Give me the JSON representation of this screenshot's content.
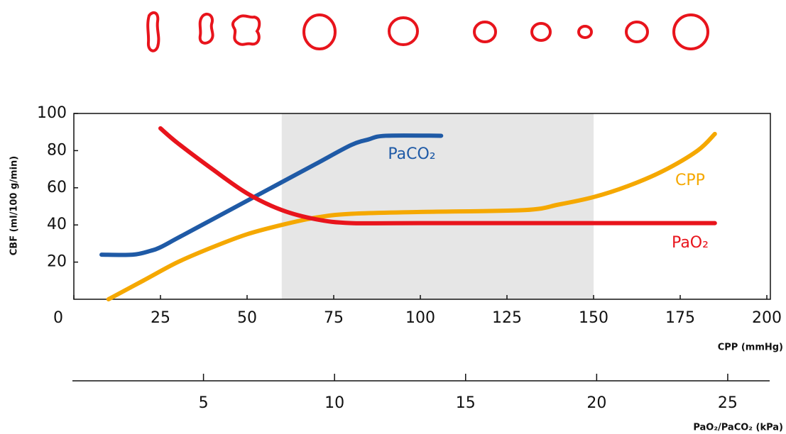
{
  "chart_data": {
    "type": "line",
    "xlabel": "CPP (mmHg)",
    "ylabel": "CBF (ml/100 g/min)",
    "xlim": [
      0,
      200
    ],
    "xticks": [
      0,
      25,
      50,
      75,
      100,
      125,
      150,
      175,
      200
    ],
    "ylim": [
      0,
      100
    ],
    "yticks": [
      20,
      40,
      60,
      80,
      100
    ],
    "x2label": "PaO₂/PaCO₂ (kPa)",
    "x2lim": [
      0,
      26.6
    ],
    "x2ticks": [
      5,
      10,
      15,
      20,
      25
    ],
    "shaded_range": [
      60,
      150
    ],
    "shade_color": "#e6e6e6",
    "series": [
      {
        "name": "PaCO₂",
        "color": "#1f5aa6",
        "x": [
          8,
          17,
          22,
          25,
          30,
          40,
          50,
          60,
          70,
          80,
          85,
          90,
          106
        ],
        "values": [
          24,
          24,
          26,
          28,
          33,
          43,
          53,
          63,
          73,
          83,
          86,
          88,
          88
        ]
      },
      {
        "name": "CPP",
        "color": "#f5a800",
        "x": [
          10,
          20,
          30,
          40,
          50,
          60,
          70,
          80,
          100,
          130,
          140,
          150,
          160,
          170,
          180,
          185
        ],
        "values": [
          0,
          10,
          20,
          28,
          35,
          40,
          44,
          46,
          47,
          48,
          51,
          55,
          61,
          69,
          80,
          89
        ]
      },
      {
        "name": "PaO₂",
        "color": "#e8141c",
        "x": [
          25,
          30,
          40,
          50,
          60,
          70,
          80,
          100,
          185
        ],
        "values": [
          92,
          84,
          70,
          57,
          48,
          43,
          41,
          41,
          41
        ]
      }
    ]
  }
}
